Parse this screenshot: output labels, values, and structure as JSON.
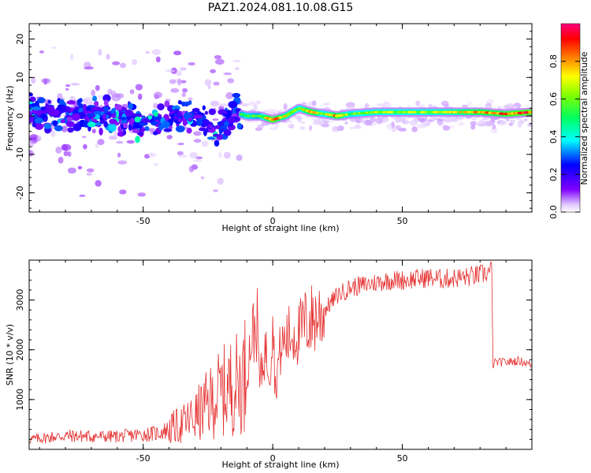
{
  "title": "PAZ1.2024.081.10.08.G15",
  "colors": {
    "spectrum_low": "#c8a8f8",
    "spectrum_mid": "#7a1cf0",
    "snr_line": "#e53030",
    "colorbar": [
      "#ffffff",
      "#8000ff",
      "#0000ff",
      "#00ffff",
      "#00ff00",
      "#ffff00",
      "#ff8000",
      "#ff0000",
      "#ff0080"
    ]
  },
  "chart_data": [
    {
      "type": "heatmap",
      "title": "PAZ1.2024.081.10.08.G15",
      "xlabel": "Height of straight line (km)",
      "ylabel": "Frequency (Hz)",
      "xlim": [
        -94,
        100
      ],
      "ylim": [
        -25,
        24
      ],
      "xticks": [
        -50,
        0,
        50
      ],
      "xtick_labels": [
        "-50",
        "0",
        "50"
      ],
      "yticks": [
        20,
        10,
        0,
        -10,
        -20
      ],
      "ytick_labels": [
        "20",
        "10",
        "0",
        "-10",
        "-20"
      ],
      "colorbar": {
        "label": "Normalized spectral amplitude",
        "range": [
          0,
          1
        ],
        "ticks": [
          0.0,
          0.2,
          0.4,
          0.6,
          0.8
        ],
        "tick_labels": [
          "0.0",
          "0.2",
          "0.4",
          "0.6",
          "0.8"
        ]
      },
      "ridge": {
        "x": [
          -90,
          -80,
          -70,
          -60,
          -50,
          -40,
          -30,
          -20,
          -15,
          -10,
          -5,
          0,
          5,
          10,
          15,
          20,
          25,
          30,
          40,
          50,
          60,
          70,
          80,
          90,
          100
        ],
        "frequency": [
          1,
          0,
          1,
          0,
          -2,
          0,
          0,
          -4,
          1,
          0,
          0,
          -1,
          0,
          2,
          1,
          0.5,
          0,
          0.5,
          1,
          1,
          1,
          1,
          1,
          0.5,
          1
        ],
        "amplitude": [
          0.25,
          0.3,
          0.3,
          0.35,
          0.35,
          0.3,
          0.35,
          0.4,
          0.5,
          0.6,
          0.55,
          0.9,
          0.7,
          0.6,
          0.85,
          0.6,
          0.85,
          0.6,
          0.65,
          0.65,
          0.65,
          0.7,
          0.8,
          0.85,
          0.9
        ]
      }
    },
    {
      "type": "line",
      "xlabel": "Height of straight line (km)",
      "ylabel": "SNR (10 * v/v)",
      "xlim": [
        -94,
        100
      ],
      "ylim": [
        0,
        3800
      ],
      "xticks": [
        -50,
        0,
        50
      ],
      "xtick_labels": [
        "-50",
        "0",
        "50"
      ],
      "yticks": [
        1000,
        2000,
        3000
      ],
      "ytick_labels": [
        "1000",
        "2000",
        "3000"
      ],
      "series": [
        {
          "x": [
            -94,
            -90,
            -85,
            -80,
            -75,
            -70,
            -65,
            -60,
            -55,
            -50,
            -45,
            -40,
            -35,
            -30,
            -27,
            -25,
            -23,
            -20,
            -18,
            -17,
            -15,
            -13,
            -11,
            -10,
            -8,
            -6,
            -5,
            -4,
            -3,
            -2,
            -1,
            0,
            1,
            2,
            3,
            5,
            7,
            9,
            10,
            12,
            15,
            18,
            20,
            25,
            30,
            35,
            40,
            45,
            50,
            55,
            60,
            65,
            70,
            75,
            80,
            83,
            84.5,
            85,
            86,
            90,
            95,
            100
          ],
          "y": [
            200,
            220,
            250,
            270,
            270,
            260,
            260,
            260,
            280,
            300,
            320,
            400,
            500,
            650,
            800,
            900,
            1000,
            1150,
            1200,
            1250,
            1300,
            1350,
            1500,
            1600,
            2300,
            2500,
            1300,
            1700,
            2000,
            1800,
            1600,
            2800,
            1200,
            1700,
            2000,
            2200,
            2300,
            2350,
            2300,
            2500,
            2600,
            2700,
            2800,
            3100,
            3250,
            3300,
            3350,
            3400,
            3400,
            3420,
            3450,
            3420,
            3440,
            3460,
            3500,
            3550,
            3600,
            1700,
            1750,
            1750,
            1780,
            1700
          ]
        }
      ]
    }
  ]
}
